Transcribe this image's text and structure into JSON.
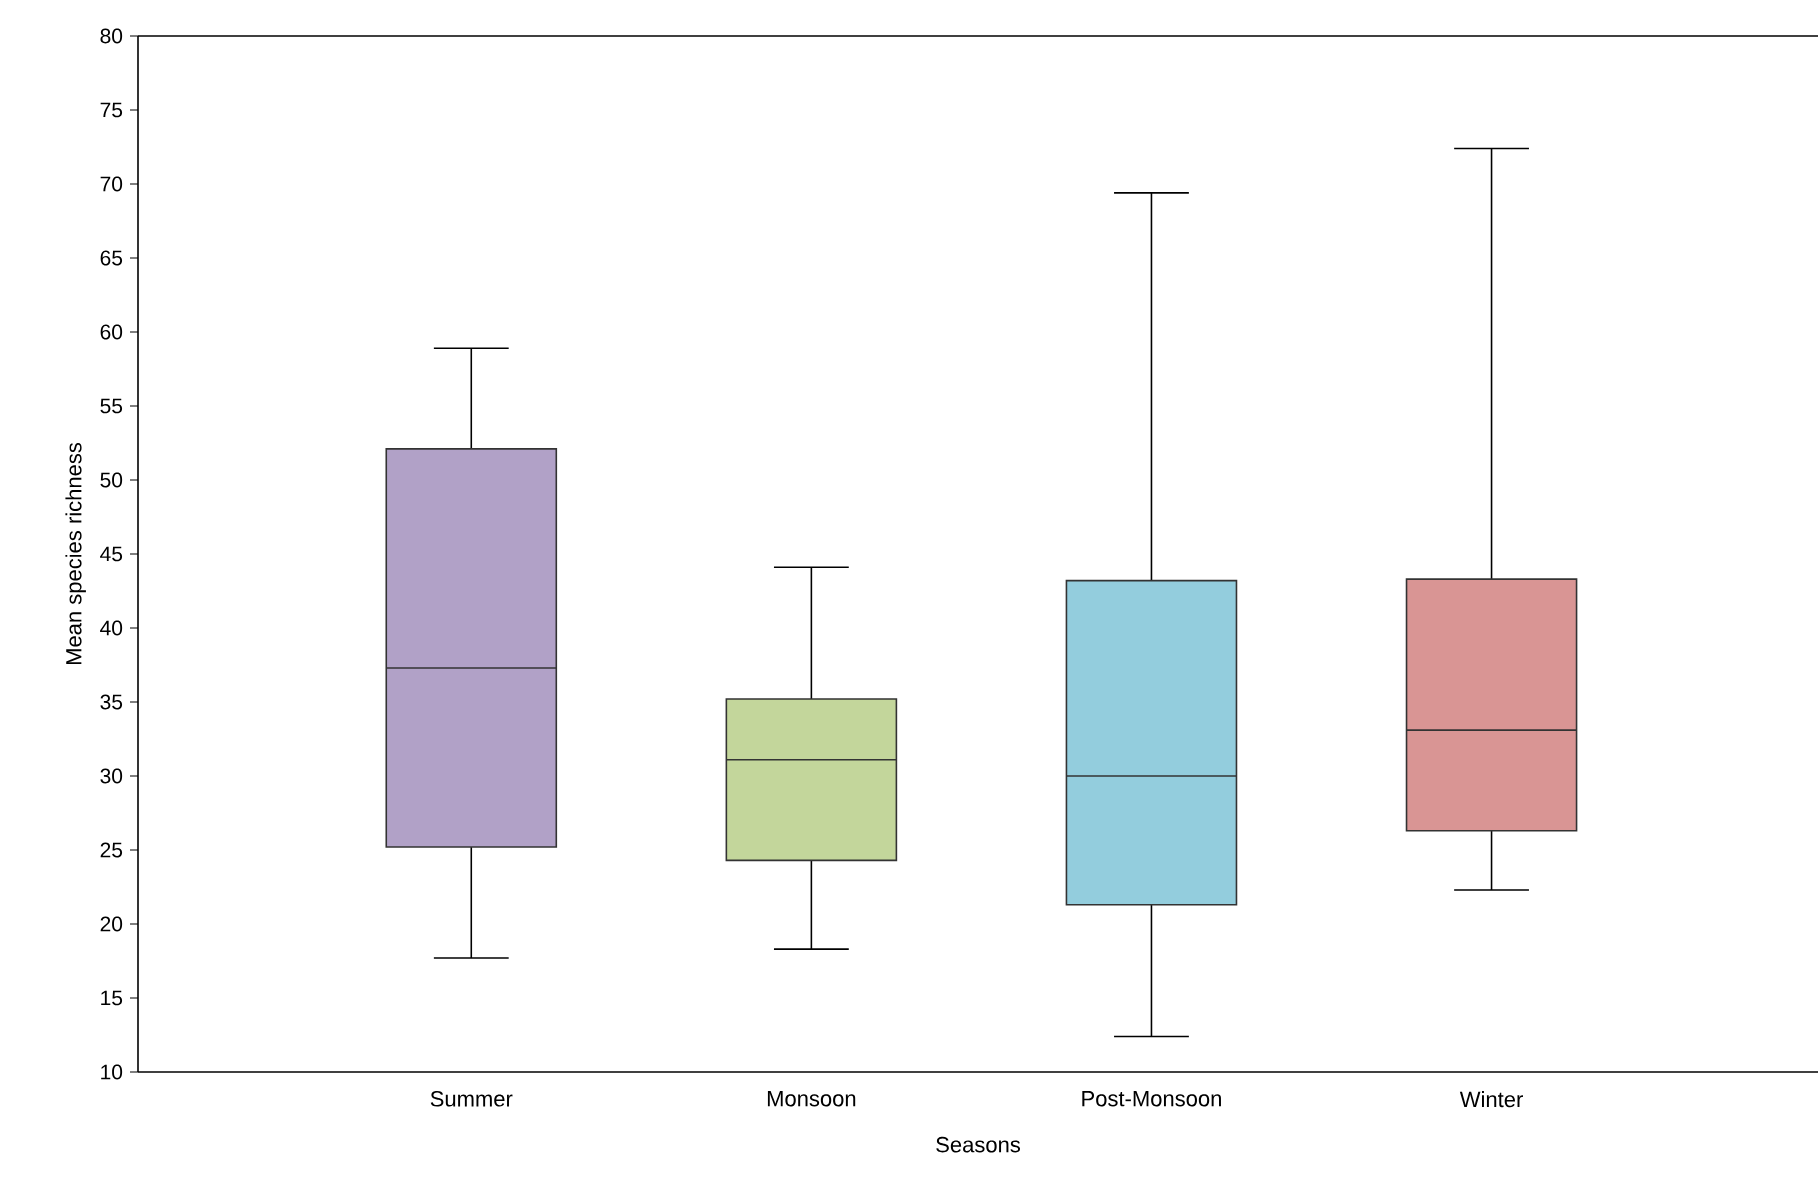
{
  "chart_data": {
    "type": "box",
    "xlabel": "Seasons",
    "ylabel": "Mean species richness",
    "categories": [
      "Summer",
      "Monsoon",
      "Post-Monsoon",
      "Winter"
    ],
    "colors": [
      "#b1a1c7",
      "#c3d69b",
      "#93cddd",
      "#d99594"
    ],
    "boxes": [
      {
        "low": 17.7,
        "q1": 25.2,
        "median": 37.3,
        "q3": 52.1,
        "high": 58.9
      },
      {
        "low": 18.3,
        "q1": 24.3,
        "median": 31.1,
        "q3": 35.2,
        "high": 44.1
      },
      {
        "low": 12.4,
        "q1": 21.3,
        "median": 30.0,
        "q3": 43.2,
        "high": 69.4
      },
      {
        "low": 22.3,
        "q1": 26.3,
        "median": 33.1,
        "q3": 43.3,
        "high": 72.4
      }
    ],
    "ylim": [
      10,
      80
    ],
    "yticks": [
      10,
      15,
      20,
      25,
      30,
      35,
      40,
      45,
      50,
      55,
      60,
      65,
      70,
      75,
      80
    ]
  }
}
